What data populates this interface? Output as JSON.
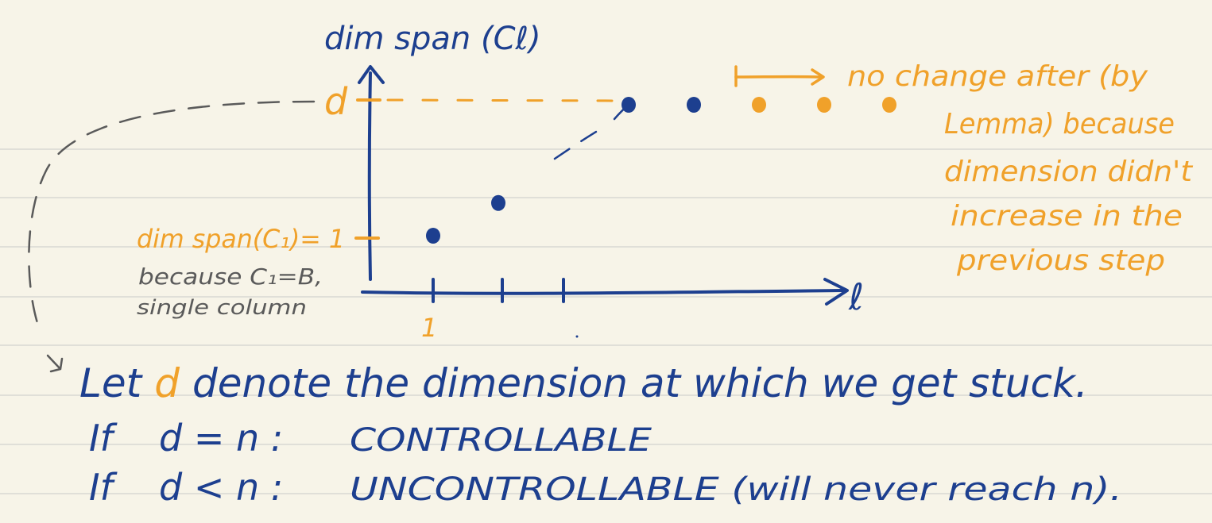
{
  "colors": {
    "paper": "#f7f4e8",
    "rule": "#d9d8d2",
    "blue": "#1d3f8f",
    "orange": "#f0a12a",
    "gray": "#5a5a5a"
  },
  "plot": {
    "y_axis_label": "dim span (Cℓ)",
    "x_axis_label": "ℓ",
    "d_label": "d",
    "one_tick_label": "1",
    "dim_c1_label": "dim span(C₁)= 1",
    "because_line1": "because C₁=B,",
    "because_line2": "single column"
  },
  "chart_data": {
    "type": "scatter",
    "points_blue": [
      {
        "x": 1,
        "y": 1
      },
      {
        "x": 2,
        "y": 2
      },
      {
        "x": 4,
        "y": 5
      },
      {
        "x": 5,
        "y": 5
      }
    ],
    "points_orange": [
      {
        "x": 6,
        "y": 5
      },
      {
        "x": 7,
        "y": 5
      },
      {
        "x": 8,
        "y": 5
      }
    ],
    "ylim": [
      0,
      5
    ]
  },
  "annotation": {
    "lines": [
      "no change after (by",
      "Lemma) because",
      "dimension didn't",
      "increase in the",
      "previous step"
    ]
  },
  "statements": {
    "let_prefix": "Let",
    "let_d": "d",
    "let_suffix": "denote the dimension at which we get stuck.",
    "if1_prefix": "If",
    "if1_cond": "d = n :",
    "if1_result": "CONTROLLABLE",
    "if2_prefix": "If",
    "if2_cond": "d < n :",
    "if2_result": "UNCONTROLLABLE (will never reach n)."
  }
}
